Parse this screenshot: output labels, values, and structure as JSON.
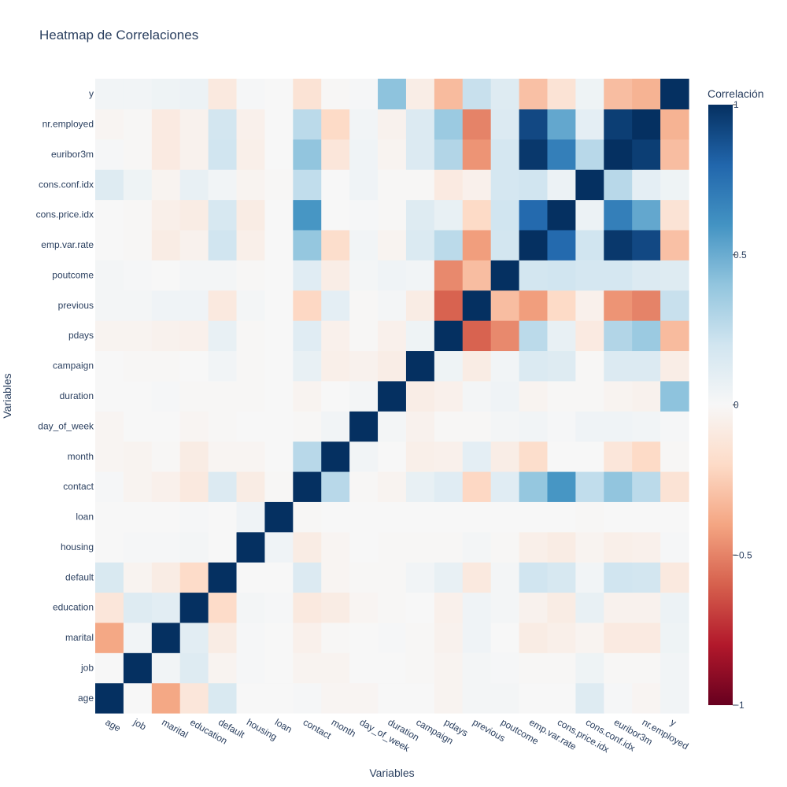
{
  "chart_data": {
    "type": "heatmap",
    "title": "Heatmap de Correlaciones",
    "xlabel": "Variables",
    "ylabel": "Variables",
    "colorbar": {
      "title": "Correlación",
      "range": [
        -1,
        1
      ],
      "ticks": [
        "1",
        "0.5",
        "0",
        "−0.5",
        "−1"
      ],
      "tick_values": [
        1,
        0.5,
        0,
        -0.5,
        -1
      ],
      "colorscale": [
        "#67001f",
        "#b2182b",
        "#d6604d",
        "#f4a582",
        "#fddbc7",
        "#f7f7f7",
        "#d1e5f0",
        "#92c5de",
        "#4393c3",
        "#2166ac",
        "#053061"
      ]
    },
    "variables": [
      "age",
      "job",
      "marital",
      "education",
      "default",
      "housing",
      "loan",
      "contact",
      "month",
      "day_of_week",
      "duration",
      "campaign",
      "pdays",
      "previous",
      "poutcome",
      "emp.var.rate",
      "cons.price.idx",
      "cons.conf.idx",
      "euribor3m",
      "nr.employed",
      "y"
    ],
    "matrix": [
      [
        1.0,
        0.0,
        -0.39,
        -0.12,
        0.16,
        0.0,
        0.0,
        0.01,
        -0.02,
        -0.02,
        0.0,
        0.0,
        -0.03,
        0.02,
        0.02,
        0.0,
        0.0,
        0.13,
        0.01,
        -0.02,
        0.03
      ],
      [
        0.0,
        1.0,
        0.03,
        0.13,
        -0.03,
        0.01,
        0.0,
        -0.03,
        -0.03,
        0.0,
        0.0,
        -0.01,
        -0.03,
        0.02,
        0.01,
        -0.01,
        -0.01,
        0.05,
        -0.01,
        -0.01,
        0.03
      ],
      [
        -0.39,
        0.03,
        1.0,
        0.11,
        -0.08,
        0.01,
        0.0,
        -0.05,
        -0.01,
        0.0,
        0.01,
        -0.01,
        -0.04,
        0.04,
        0.0,
        -0.08,
        -0.06,
        -0.03,
        -0.09,
        -0.09,
        0.05
      ],
      [
        -0.12,
        0.13,
        0.11,
        1.0,
        -0.19,
        0.02,
        0.01,
        -0.1,
        -0.08,
        -0.02,
        -0.01,
        0.0,
        -0.05,
        0.04,
        0.02,
        -0.04,
        -0.08,
        0.08,
        -0.04,
        -0.04,
        0.06
      ],
      [
        0.16,
        -0.03,
        -0.08,
        -0.19,
        1.0,
        0.0,
        0.0,
        0.14,
        -0.02,
        -0.01,
        -0.01,
        0.03,
        0.08,
        -0.1,
        0.02,
        0.2,
        0.17,
        0.03,
        0.2,
        0.19,
        -0.1
      ],
      [
        0.0,
        0.01,
        0.01,
        0.02,
        0.0,
        1.0,
        0.04,
        -0.08,
        -0.02,
        0.0,
        -0.01,
        -0.01,
        -0.01,
        0.02,
        -0.01,
        -0.06,
        -0.08,
        -0.03,
        -0.06,
        -0.05,
        0.01
      ],
      [
        0.0,
        0.0,
        0.0,
        0.01,
        0.0,
        0.04,
        1.0,
        -0.01,
        0.0,
        0.0,
        0.0,
        0.0,
        0.0,
        0.0,
        0.0,
        0.0,
        0.0,
        -0.01,
        0.0,
        0.0,
        0.0
      ],
      [
        0.01,
        -0.03,
        -0.05,
        -0.1,
        0.14,
        -0.08,
        -0.01,
        1.0,
        0.28,
        -0.01,
        -0.03,
        0.08,
        0.12,
        -0.21,
        0.12,
        0.39,
        0.59,
        0.25,
        0.4,
        0.27,
        -0.14
      ],
      [
        -0.02,
        -0.03,
        -0.01,
        -0.08,
        -0.02,
        -0.02,
        0.0,
        0.28,
        1.0,
        0.03,
        0.0,
        -0.06,
        -0.05,
        0.1,
        -0.07,
        -0.18,
        0.0,
        0.0,
        -0.12,
        -0.2,
        -0.01
      ],
      [
        -0.02,
        0.0,
        0.0,
        -0.02,
        -0.01,
        0.0,
        0.0,
        -0.01,
        0.03,
        1.0,
        0.02,
        -0.04,
        -0.01,
        -0.01,
        0.02,
        0.03,
        0.01,
        0.04,
        0.04,
        0.03,
        0.01
      ],
      [
        0.0,
        0.0,
        0.01,
        -0.01,
        -0.01,
        -0.01,
        0.0,
        -0.03,
        0.0,
        0.02,
        1.0,
        -0.07,
        -0.05,
        0.02,
        0.04,
        -0.03,
        -0.01,
        -0.01,
        -0.03,
        -0.04,
        0.41
      ],
      [
        0.0,
        -0.01,
        -0.01,
        0.0,
        0.03,
        -0.01,
        0.0,
        0.08,
        -0.06,
        -0.04,
        -0.07,
        1.0,
        0.05,
        -0.08,
        0.03,
        0.15,
        0.13,
        -0.01,
        0.14,
        0.14,
        -0.07
      ],
      [
        -0.03,
        -0.03,
        -0.04,
        -0.05,
        0.08,
        -0.01,
        0.0,
        0.12,
        -0.05,
        -0.01,
        -0.05,
        0.05,
        1.0,
        -0.59,
        -0.48,
        0.27,
        0.08,
        -0.09,
        0.3,
        0.37,
        -0.32
      ],
      [
        0.02,
        0.02,
        0.04,
        0.04,
        -0.1,
        0.02,
        0.0,
        -0.21,
        0.1,
        -0.01,
        0.02,
        -0.08,
        -0.59,
        1.0,
        -0.31,
        -0.42,
        -0.2,
        -0.05,
        -0.45,
        -0.5,
        0.23
      ],
      [
        0.02,
        0.01,
        0.0,
        0.02,
        0.02,
        -0.01,
        0.0,
        0.12,
        -0.07,
        0.02,
        0.04,
        0.03,
        -0.48,
        -0.31,
        1.0,
        0.19,
        0.2,
        0.18,
        0.18,
        0.14,
        0.13
      ],
      [
        0.0,
        -0.01,
        -0.08,
        -0.04,
        0.2,
        -0.06,
        0.0,
        0.39,
        -0.18,
        0.03,
        -0.03,
        0.15,
        0.27,
        -0.42,
        0.19,
        1.0,
        0.78,
        0.2,
        0.97,
        0.91,
        -0.3
      ],
      [
        0.0,
        -0.01,
        -0.06,
        -0.08,
        0.17,
        -0.08,
        0.0,
        0.59,
        0.0,
        0.01,
        -0.01,
        0.13,
        0.08,
        -0.2,
        0.2,
        0.78,
        1.0,
        0.06,
        0.69,
        0.52,
        -0.14
      ],
      [
        0.13,
        0.05,
        -0.03,
        0.08,
        0.03,
        -0.03,
        -0.01,
        0.25,
        0.0,
        0.04,
        -0.01,
        -0.01,
        -0.09,
        -0.05,
        0.18,
        0.2,
        0.06,
        1.0,
        0.28,
        0.1,
        0.05
      ],
      [
        0.01,
        -0.01,
        -0.09,
        -0.04,
        0.2,
        -0.06,
        0.0,
        0.4,
        -0.12,
        0.04,
        -0.03,
        0.14,
        0.3,
        -0.45,
        0.18,
        0.97,
        0.69,
        0.28,
        1.0,
        0.95,
        -0.31
      ],
      [
        -0.02,
        -0.01,
        -0.09,
        -0.04,
        0.19,
        -0.05,
        0.0,
        0.27,
        -0.2,
        0.03,
        -0.04,
        0.14,
        0.37,
        -0.5,
        0.14,
        0.91,
        0.52,
        0.1,
        0.95,
        1.0,
        -0.35
      ],
      [
        0.03,
        0.03,
        0.05,
        0.06,
        -0.1,
        0.01,
        0.0,
        -0.14,
        -0.01,
        0.01,
        0.41,
        -0.07,
        -0.32,
        0.23,
        0.13,
        -0.3,
        -0.14,
        0.05,
        -0.31,
        -0.35,
        1.0
      ]
    ]
  }
}
